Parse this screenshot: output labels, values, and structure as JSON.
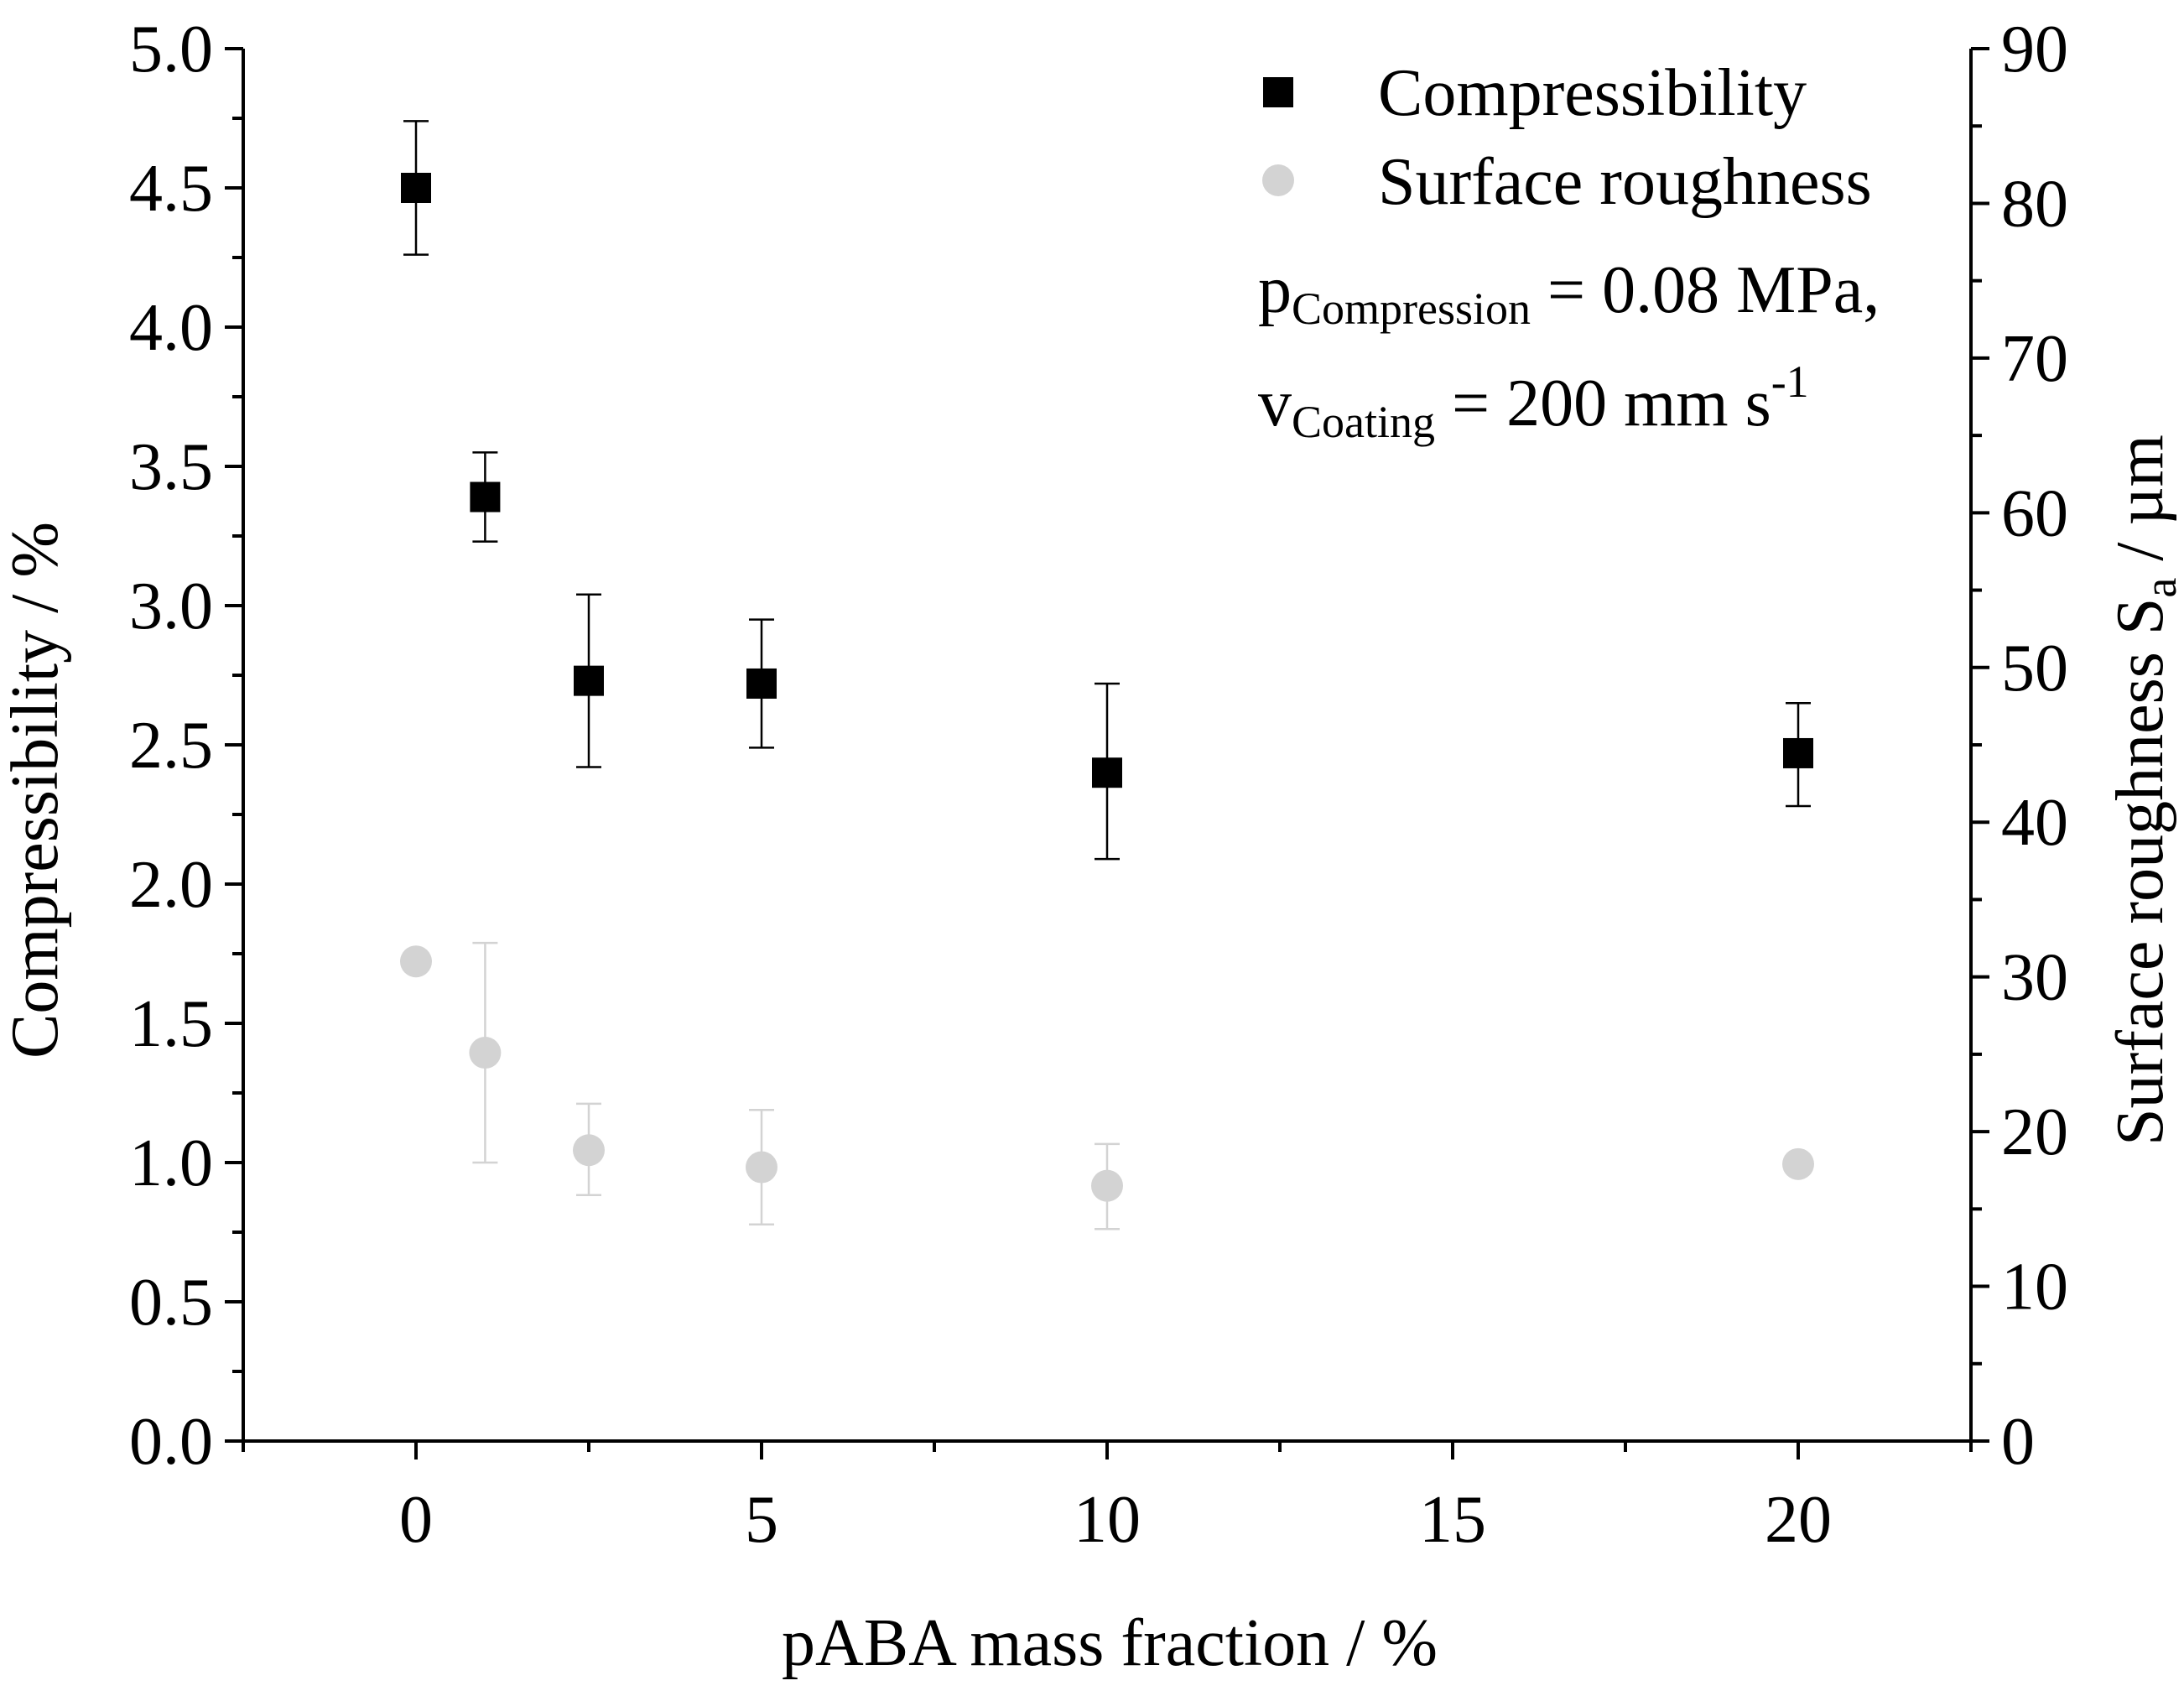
{
  "chart_data": {
    "type": "scatter",
    "x_label": "pABA mass fraction / %",
    "y_label_left": "Compressibility / %",
    "y_label_right_main": "Surface roughness S",
    "y_label_right_sub": "a",
    "y_label_right_tail": " / µm",
    "xlim": [
      -2.5,
      22.5
    ],
    "ylim_left": [
      0.0,
      5.0
    ],
    "ylim_right": [
      0,
      90
    ],
    "x_ticks": [
      0,
      5,
      10,
      15,
      20
    ],
    "x_tick_labels": [
      "0",
      "5",
      "10",
      "15",
      "20"
    ],
    "y_ticks_left": [
      0.0,
      0.5,
      1.0,
      1.5,
      2.0,
      2.5,
      3.0,
      3.5,
      4.0,
      4.5,
      5.0
    ],
    "y_tick_labels_left": [
      "0.0",
      "0.5",
      "1.0",
      "1.5",
      "2.0",
      "2.5",
      "3.0",
      "3.5",
      "4.0",
      "4.5",
      "5.0"
    ],
    "y_ticks_right": [
      0,
      10,
      20,
      30,
      40,
      50,
      60,
      70,
      80,
      90
    ],
    "y_tick_labels_right": [
      "0",
      "10",
      "20",
      "30",
      "40",
      "50",
      "60",
      "70",
      "80",
      "90"
    ],
    "series": [
      {
        "name": "Compressibility",
        "axis": "left",
        "marker": "square",
        "color": "#000000",
        "x": [
          0,
          1,
          2.5,
          5,
          10,
          20
        ],
        "y": [
          4.5,
          3.39,
          2.73,
          2.72,
          2.4,
          2.47
        ],
        "err_low": [
          4.26,
          3.23,
          2.42,
          2.49,
          2.09,
          2.28
        ],
        "err_high": [
          4.74,
          3.55,
          3.04,
          2.95,
          2.72,
          2.65
        ]
      },
      {
        "name": "Surface roughness",
        "axis": "right",
        "marker": "circle",
        "color": "#d3d3d3",
        "x": [
          0,
          1,
          2.5,
          5,
          10,
          20
        ],
        "y": [
          31.0,
          25.1,
          18.8,
          17.7,
          16.5,
          17.9
        ],
        "err_low": [
          31.0,
          18.0,
          15.9,
          14.0,
          13.7,
          17.9
        ],
        "err_high": [
          31.0,
          32.2,
          21.8,
          21.4,
          19.2,
          17.9
        ]
      }
    ],
    "legend_position": "top-right",
    "annotations": [
      {
        "main": "p",
        "sub": "Compression",
        "tail": " = 0.08 MPa,",
        "sup": ""
      },
      {
        "main": "v",
        "sub": "Coating",
        "tail": " = 200 mm s",
        "sup": "-1"
      }
    ]
  }
}
